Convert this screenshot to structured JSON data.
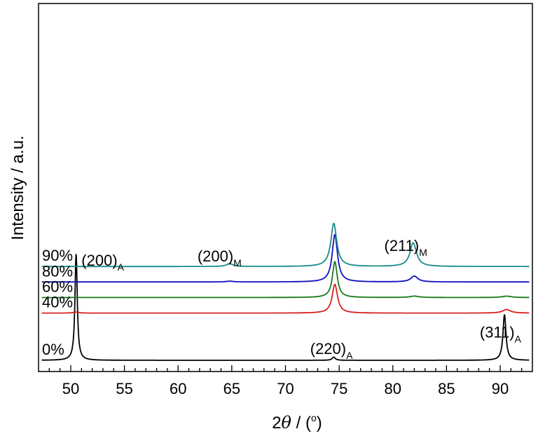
{
  "chart_data": {
    "type": "line",
    "title": "",
    "xlabel_prefix": "2",
    "xlabel_symbol": "θ",
    "xlabel_suffix": " / (",
    "xlabel_unit": "o",
    "xlabel_close": ")",
    "ylabel": "Intensity / a.u.",
    "xlim": [
      47,
      93
    ],
    "ylim": [
      0,
      100
    ],
    "grid": false,
    "y_ticks_shown": false,
    "x_ticks": [
      "50",
      "55",
      "60",
      "65",
      "70",
      "75",
      "80",
      "85",
      "90"
    ],
    "series": [
      {
        "name": "0%",
        "color": "#000000",
        "baseline": 0,
        "peaks": [
          {
            "center": 50.5,
            "height": 100,
            "width": 0.13
          },
          {
            "center": 74.5,
            "height": 3,
            "width": 0.18
          },
          {
            "center": 90.4,
            "height": 43,
            "width": 0.17
          }
        ]
      },
      {
        "name": "40%",
        "color": "#d62020",
        "baseline": 44.6,
        "peaks": [
          {
            "center": 50.5,
            "height": 1,
            "width": 0.3
          },
          {
            "center": 74.6,
            "height": 27.2,
            "width": 0.3
          },
          {
            "center": 90.6,
            "height": 3.3,
            "width": 0.45
          }
        ]
      },
      {
        "name": "60%",
        "color": "#1a7a1a",
        "baseline": 59.3,
        "peaks": [
          {
            "center": 74.6,
            "height": 34,
            "width": 0.27
          },
          {
            "center": 82.0,
            "height": 1.3,
            "width": 0.5
          },
          {
            "center": 90.6,
            "height": 1.3,
            "width": 0.5
          }
        ]
      },
      {
        "name": "80%",
        "color": "#1010c0",
        "baseline": 74,
        "peaks": [
          {
            "center": 64.8,
            "height": 0.7,
            "width": 0.4
          },
          {
            "center": 74.6,
            "height": 44.7,
            "width": 0.3
          },
          {
            "center": 82.0,
            "height": 5.5,
            "width": 0.4
          }
        ]
      },
      {
        "name": "90%",
        "color": "#1a8a8a",
        "baseline": 88.6,
        "peaks": [
          {
            "center": 64.8,
            "height": 2.7,
            "width": 0.35
          },
          {
            "center": 74.5,
            "height": 40.7,
            "width": 0.33
          },
          {
            "center": 81.9,
            "height": 22.3,
            "width": 0.37
          }
        ]
      }
    ],
    "annotations": [
      {
        "name": "peak-label-200-m",
        "text": "(200)",
        "sub": "M",
        "x": 61.8,
        "y": 93.5
      },
      {
        "name": "peak-label-211-m",
        "text": "(211)",
        "sub": "M",
        "x": 79.2,
        "y": 103.3
      },
      {
        "name": "peak-label-200-a",
        "text": "(200)",
        "sub": "A",
        "x": 51.0,
        "y": 89.5
      },
      {
        "name": "peak-label-220-a",
        "text": "(220)",
        "sub": "A",
        "x": 72.3,
        "y": 5.8
      },
      {
        "name": "peak-label-311-a",
        "text": "(311)",
        "sub": "A",
        "x": 88.1,
        "y": 21.5
      }
    ]
  }
}
